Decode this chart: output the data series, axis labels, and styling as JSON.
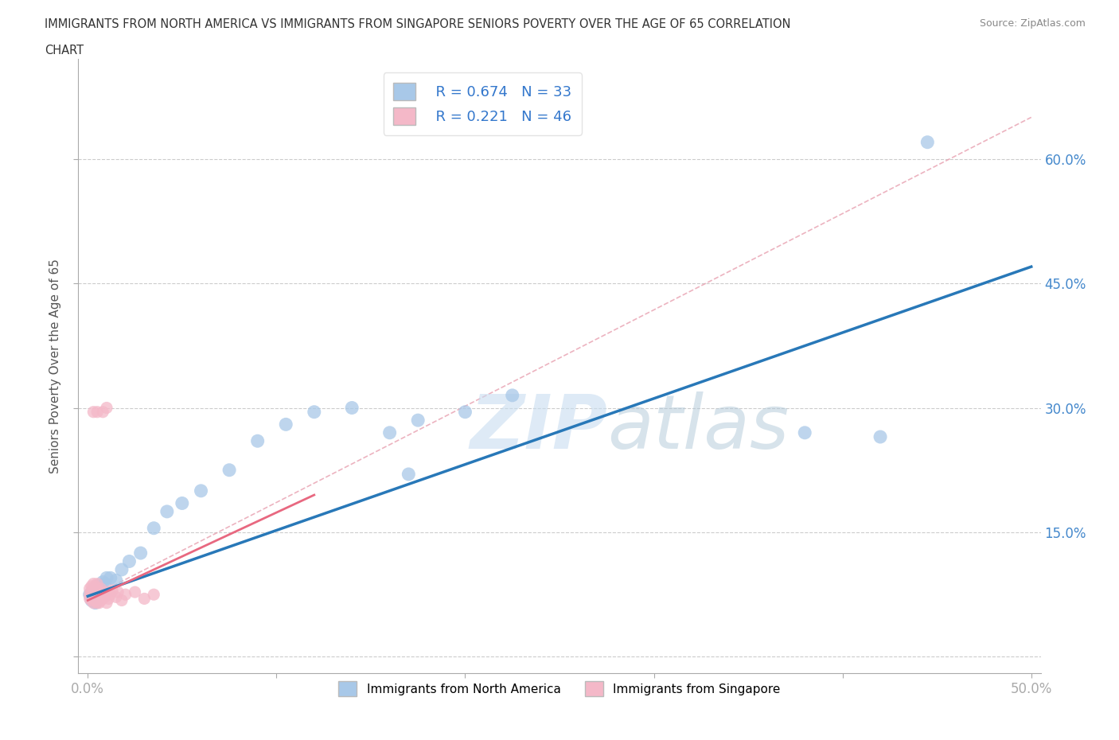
{
  "title_line1": "IMMIGRANTS FROM NORTH AMERICA VS IMMIGRANTS FROM SINGAPORE SENIORS POVERTY OVER THE AGE OF 65 CORRELATION",
  "title_line2": "CHART",
  "source": "Source: ZipAtlas.com",
  "ylabel": "Seniors Poverty Over the Age of 65",
  "xlim": [
    -0.005,
    0.505
  ],
  "ylim": [
    -0.02,
    0.72
  ],
  "xticks": [
    0.0,
    0.1,
    0.2,
    0.3,
    0.4,
    0.5
  ],
  "xticklabels": [
    "0.0%",
    "",
    "",
    "",
    "",
    "50.0%"
  ],
  "yticks": [
    0.0,
    0.15,
    0.3,
    0.45,
    0.6
  ],
  "yticklabels_right": [
    "",
    "15.0%",
    "30.0%",
    "45.0%",
    "60.0%"
  ],
  "watermark": "ZIPatlas",
  "legend_R1": "R = 0.674",
  "legend_N1": "N = 33",
  "legend_R2": "R = 0.221",
  "legend_N2": "N = 46",
  "color_blue": "#a8c8e8",
  "color_pink": "#f4b8c8",
  "color_blue_line": "#2878b8",
  "color_pink_line": "#e86880",
  "color_pink_dash": "#e8a0b0",
  "legend_label1": "Immigrants from North America",
  "legend_label2": "Immigrants from Singapore",
  "na_x": [
    0.001,
    0.002,
    0.003,
    0.003,
    0.004,
    0.005,
    0.006,
    0.007,
    0.008,
    0.009,
    0.01,
    0.012,
    0.015,
    0.018,
    0.022,
    0.028,
    0.035,
    0.042,
    0.05,
    0.06,
    0.075,
    0.09,
    0.105,
    0.12,
    0.14,
    0.16,
    0.175,
    0.2,
    0.225,
    0.17,
    0.38,
    0.42,
    0.445
  ],
  "na_y": [
    0.075,
    0.068,
    0.072,
    0.08,
    0.065,
    0.085,
    0.078,
    0.082,
    0.09,
    0.088,
    0.095,
    0.095,
    0.092,
    0.105,
    0.115,
    0.125,
    0.155,
    0.175,
    0.185,
    0.2,
    0.225,
    0.26,
    0.28,
    0.295,
    0.3,
    0.27,
    0.285,
    0.295,
    0.315,
    0.22,
    0.27,
    0.265,
    0.62
  ],
  "sg_x": [
    0.001,
    0.001,
    0.001,
    0.002,
    0.002,
    0.002,
    0.002,
    0.003,
    0.003,
    0.003,
    0.003,
    0.003,
    0.004,
    0.004,
    0.004,
    0.004,
    0.005,
    0.005,
    0.005,
    0.005,
    0.005,
    0.006,
    0.006,
    0.006,
    0.007,
    0.007,
    0.007,
    0.008,
    0.008,
    0.009,
    0.01,
    0.01,
    0.011,
    0.012,
    0.013,
    0.015,
    0.016,
    0.018,
    0.02,
    0.025,
    0.03,
    0.035,
    0.008,
    0.01,
    0.005,
    0.003
  ],
  "sg_y": [
    0.07,
    0.075,
    0.082,
    0.068,
    0.075,
    0.08,
    0.085,
    0.065,
    0.07,
    0.075,
    0.08,
    0.088,
    0.068,
    0.072,
    0.078,
    0.085,
    0.065,
    0.07,
    0.075,
    0.08,
    0.088,
    0.065,
    0.07,
    0.078,
    0.068,
    0.075,
    0.082,
    0.07,
    0.078,
    0.072,
    0.065,
    0.078,
    0.07,
    0.075,
    0.08,
    0.072,
    0.078,
    0.068,
    0.075,
    0.078,
    0.07,
    0.075,
    0.295,
    0.3,
    0.295,
    0.295
  ],
  "na_line_x": [
    0.0,
    0.5
  ],
  "na_line_y": [
    0.073,
    0.47
  ],
  "sg_line_x": [
    0.0,
    0.12
  ],
  "sg_line_y": [
    0.068,
    0.195
  ]
}
